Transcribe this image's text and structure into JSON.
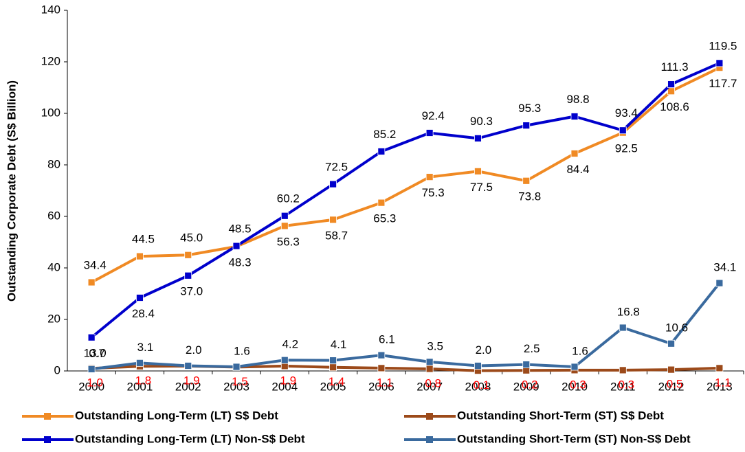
{
  "chart_data": {
    "type": "line",
    "y_label": "Outstanding Corporate Debt (S$ Billion)",
    "categories": [
      "2000",
      "2001",
      "2002",
      "2003",
      "2004",
      "2005",
      "2006",
      "2007",
      "2008",
      "2009",
      "2010",
      "2011",
      "2012",
      "2013"
    ],
    "ylim": [
      0,
      140
    ],
    "yticks": [
      0,
      20,
      40,
      60,
      80,
      100,
      120,
      140
    ],
    "grid": false,
    "legend": "bottom",
    "series": [
      {
        "name": "Outstanding Long-Term (LT) S$ Debt",
        "color": "#F08A24",
        "label_color": "#000000",
        "values": [
          34.4,
          44.5,
          45.0,
          48.3,
          56.3,
          58.7,
          65.3,
          75.3,
          77.5,
          73.8,
          84.4,
          92.5,
          108.6,
          117.7
        ],
        "value_labels": [
          "34.4",
          "44.5",
          "45.0",
          "48.3",
          "56.3",
          "58.7",
          "65.3",
          "75.3",
          "77.5",
          "73.8",
          "84.4",
          "92.5",
          "108.6",
          "117.7"
        ]
      },
      {
        "name": "Outstanding Short-Term (ST) S$ Debt",
        "color": "#9C4A1A",
        "label_color": "#FF0000",
        "values": [
          1.0,
          1.8,
          1.9,
          1.5,
          1.9,
          1.4,
          1.1,
          0.8,
          0.1,
          0.2,
          0.3,
          0.3,
          0.5,
          1.1
        ],
        "value_labels": [
          "1.0",
          "1.8",
          "1.9",
          "1.5",
          "1.9",
          "1.4",
          "1.1",
          "0.8",
          "0.1",
          "0.2",
          "0.3",
          "0.3",
          "0.5",
          "1.1"
        ]
      },
      {
        "name": "Outstanding Long-Term (LT) Non-S$ Debt",
        "color": "#0000CC",
        "label_color": "#000000",
        "values": [
          13.0,
          28.4,
          37.0,
          48.5,
          60.2,
          72.5,
          85.2,
          92.4,
          90.3,
          95.3,
          98.8,
          93.4,
          111.3,
          119.5
        ],
        "value_labels": [
          "13.0",
          "28.4",
          "37.0",
          "48.5",
          "60.2",
          "72.5",
          "85.2",
          "92.4",
          "90.3",
          "95.3",
          "98.8",
          "93.4",
          "111.3",
          "119.5"
        ]
      },
      {
        "name": "Outstanding Short-Term (ST) Non-S$ Debt",
        "color": "#3A6A9E",
        "label_color": "#000000",
        "values": [
          0.7,
          3.1,
          2.0,
          1.6,
          4.2,
          4.1,
          6.1,
          3.5,
          2.0,
          2.5,
          1.6,
          16.8,
          10.6,
          34.1
        ],
        "value_labels": [
          "0.7",
          "3.1",
          "2.0",
          "1.6",
          "4.2",
          "4.1",
          "6.1",
          "3.5",
          "2.0",
          "2.5",
          "1.6",
          "16.8",
          "10.6",
          "34.1"
        ]
      }
    ]
  }
}
